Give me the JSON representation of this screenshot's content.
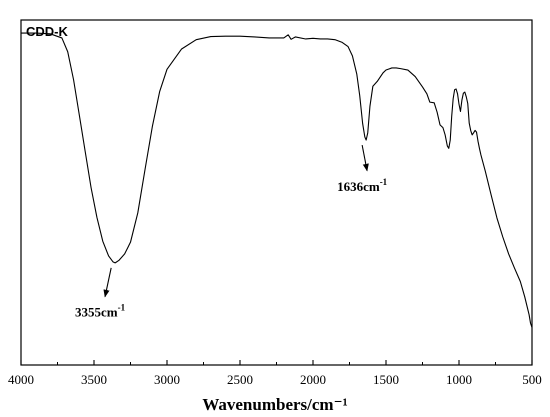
{
  "chart_data": {
    "type": "line",
    "title": "CDD-K",
    "xlabel": "Wavenumbers/cm⁻¹",
    "ylabel": "",
    "xlim": [
      4000,
      500
    ],
    "x_reversed": true,
    "y_ticks_shown": false,
    "grid": false,
    "x_ticks": [
      4000,
      3500,
      3000,
      2500,
      2000,
      1500,
      1000,
      500
    ],
    "x_tick_labels": [
      "4000",
      "3500",
      "3000",
      "2500",
      "2000",
      "1500",
      "1000",
      "500"
    ],
    "ylim": [
      0,
      100
    ],
    "series": [
      {
        "x": [
          4000,
          3900,
          3800,
          3720,
          3680,
          3640,
          3600,
          3560,
          3520,
          3480,
          3440,
          3400,
          3370,
          3355,
          3330,
          3290,
          3250,
          3200,
          3150,
          3100,
          3050,
          3000,
          2900,
          2800,
          2700,
          2600,
          2500,
          2400,
          2300,
          2200,
          2170,
          2150,
          2120,
          2050,
          2000,
          1950,
          1900,
          1850,
          1800,
          1760,
          1730,
          1700,
          1680,
          1660,
          1645,
          1636,
          1625,
          1610,
          1590,
          1560,
          1520,
          1500,
          1480,
          1460,
          1430,
          1400,
          1350,
          1300,
          1250,
          1220,
          1200,
          1170,
          1150,
          1130,
          1110,
          1095,
          1080,
          1070,
          1060,
          1050,
          1040,
          1030,
          1020,
          1010,
          1000,
          990,
          980,
          970,
          960,
          950,
          940,
          930,
          920,
          910,
          900,
          890,
          880,
          870,
          860,
          850,
          820,
          780,
          740,
          700,
          660,
          620,
          580,
          550,
          520,
          510,
          500
        ],
        "y": [
          96.2,
          96.2,
          96.0,
          94.8,
          90.8,
          82.7,
          72.3,
          61.8,
          51.4,
          42.8,
          35.9,
          31.6,
          29.9,
          29.6,
          30.3,
          32.2,
          35.6,
          44.1,
          56.8,
          69.2,
          79.3,
          85.7,
          91.6,
          94.3,
          95.2,
          95.3,
          95.3,
          95.1,
          94.8,
          94.8,
          95.7,
          94.4,
          95.1,
          94.5,
          94.7,
          94.5,
          94.5,
          94.3,
          93.5,
          92.3,
          89.6,
          84.3,
          78.1,
          70.0,
          66.1,
          65.2,
          67.3,
          75.0,
          80.8,
          82.2,
          84.7,
          85.5,
          85.8,
          86.1,
          86.1,
          85.9,
          85.5,
          83.6,
          80.6,
          78.6,
          76.2,
          76.0,
          73.3,
          69.6,
          68.8,
          66.7,
          63.5,
          62.8,
          65.2,
          72.1,
          77.2,
          79.8,
          80.0,
          78.6,
          75.6,
          73.5,
          76.8,
          78.8,
          79.1,
          77.7,
          75.8,
          70.1,
          68.0,
          66.7,
          67.3,
          68.0,
          67.5,
          64.9,
          62.8,
          60.9,
          56.2,
          49.3,
          42.6,
          37.1,
          32.2,
          28.1,
          24.2,
          19.8,
          14.6,
          12.1,
          10.9
        ]
      }
    ],
    "annotations": [
      {
        "label": "3355cm",
        "sup": "-1",
        "point_x": 3355,
        "point_y": 29.6,
        "text_x": 3630,
        "text_y": 14.0
      },
      {
        "label": "1636cm",
        "sup": "-1",
        "point_x": 1636,
        "point_y": 65.2,
        "text_x": 1835,
        "text_y": 50.5
      }
    ]
  }
}
